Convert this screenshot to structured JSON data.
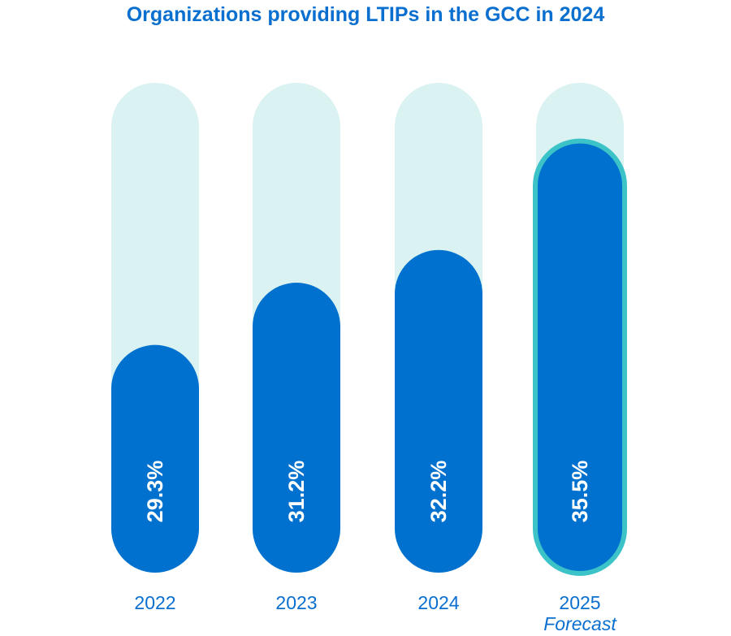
{
  "chart_data": {
    "type": "bar",
    "title": "Organizations providing LTIPs in the GCC in 2024",
    "categories": [
      "2022",
      "2023",
      "2024",
      "2025"
    ],
    "category_notes": [
      "",
      "",
      "",
      "Forecast"
    ],
    "values": [
      29.3,
      31.2,
      32.2,
      35.5
    ],
    "data_labels": [
      "29.3%",
      "31.2%",
      "32.2%",
      "35.5%"
    ],
    "highlighted": [
      false,
      false,
      false,
      true
    ],
    "grid": false,
    "colors": {
      "track": "#daf2f2",
      "fill": "#0071ce",
      "highlight_border": "#3cc3c8",
      "text": "#0a6fcf"
    }
  }
}
